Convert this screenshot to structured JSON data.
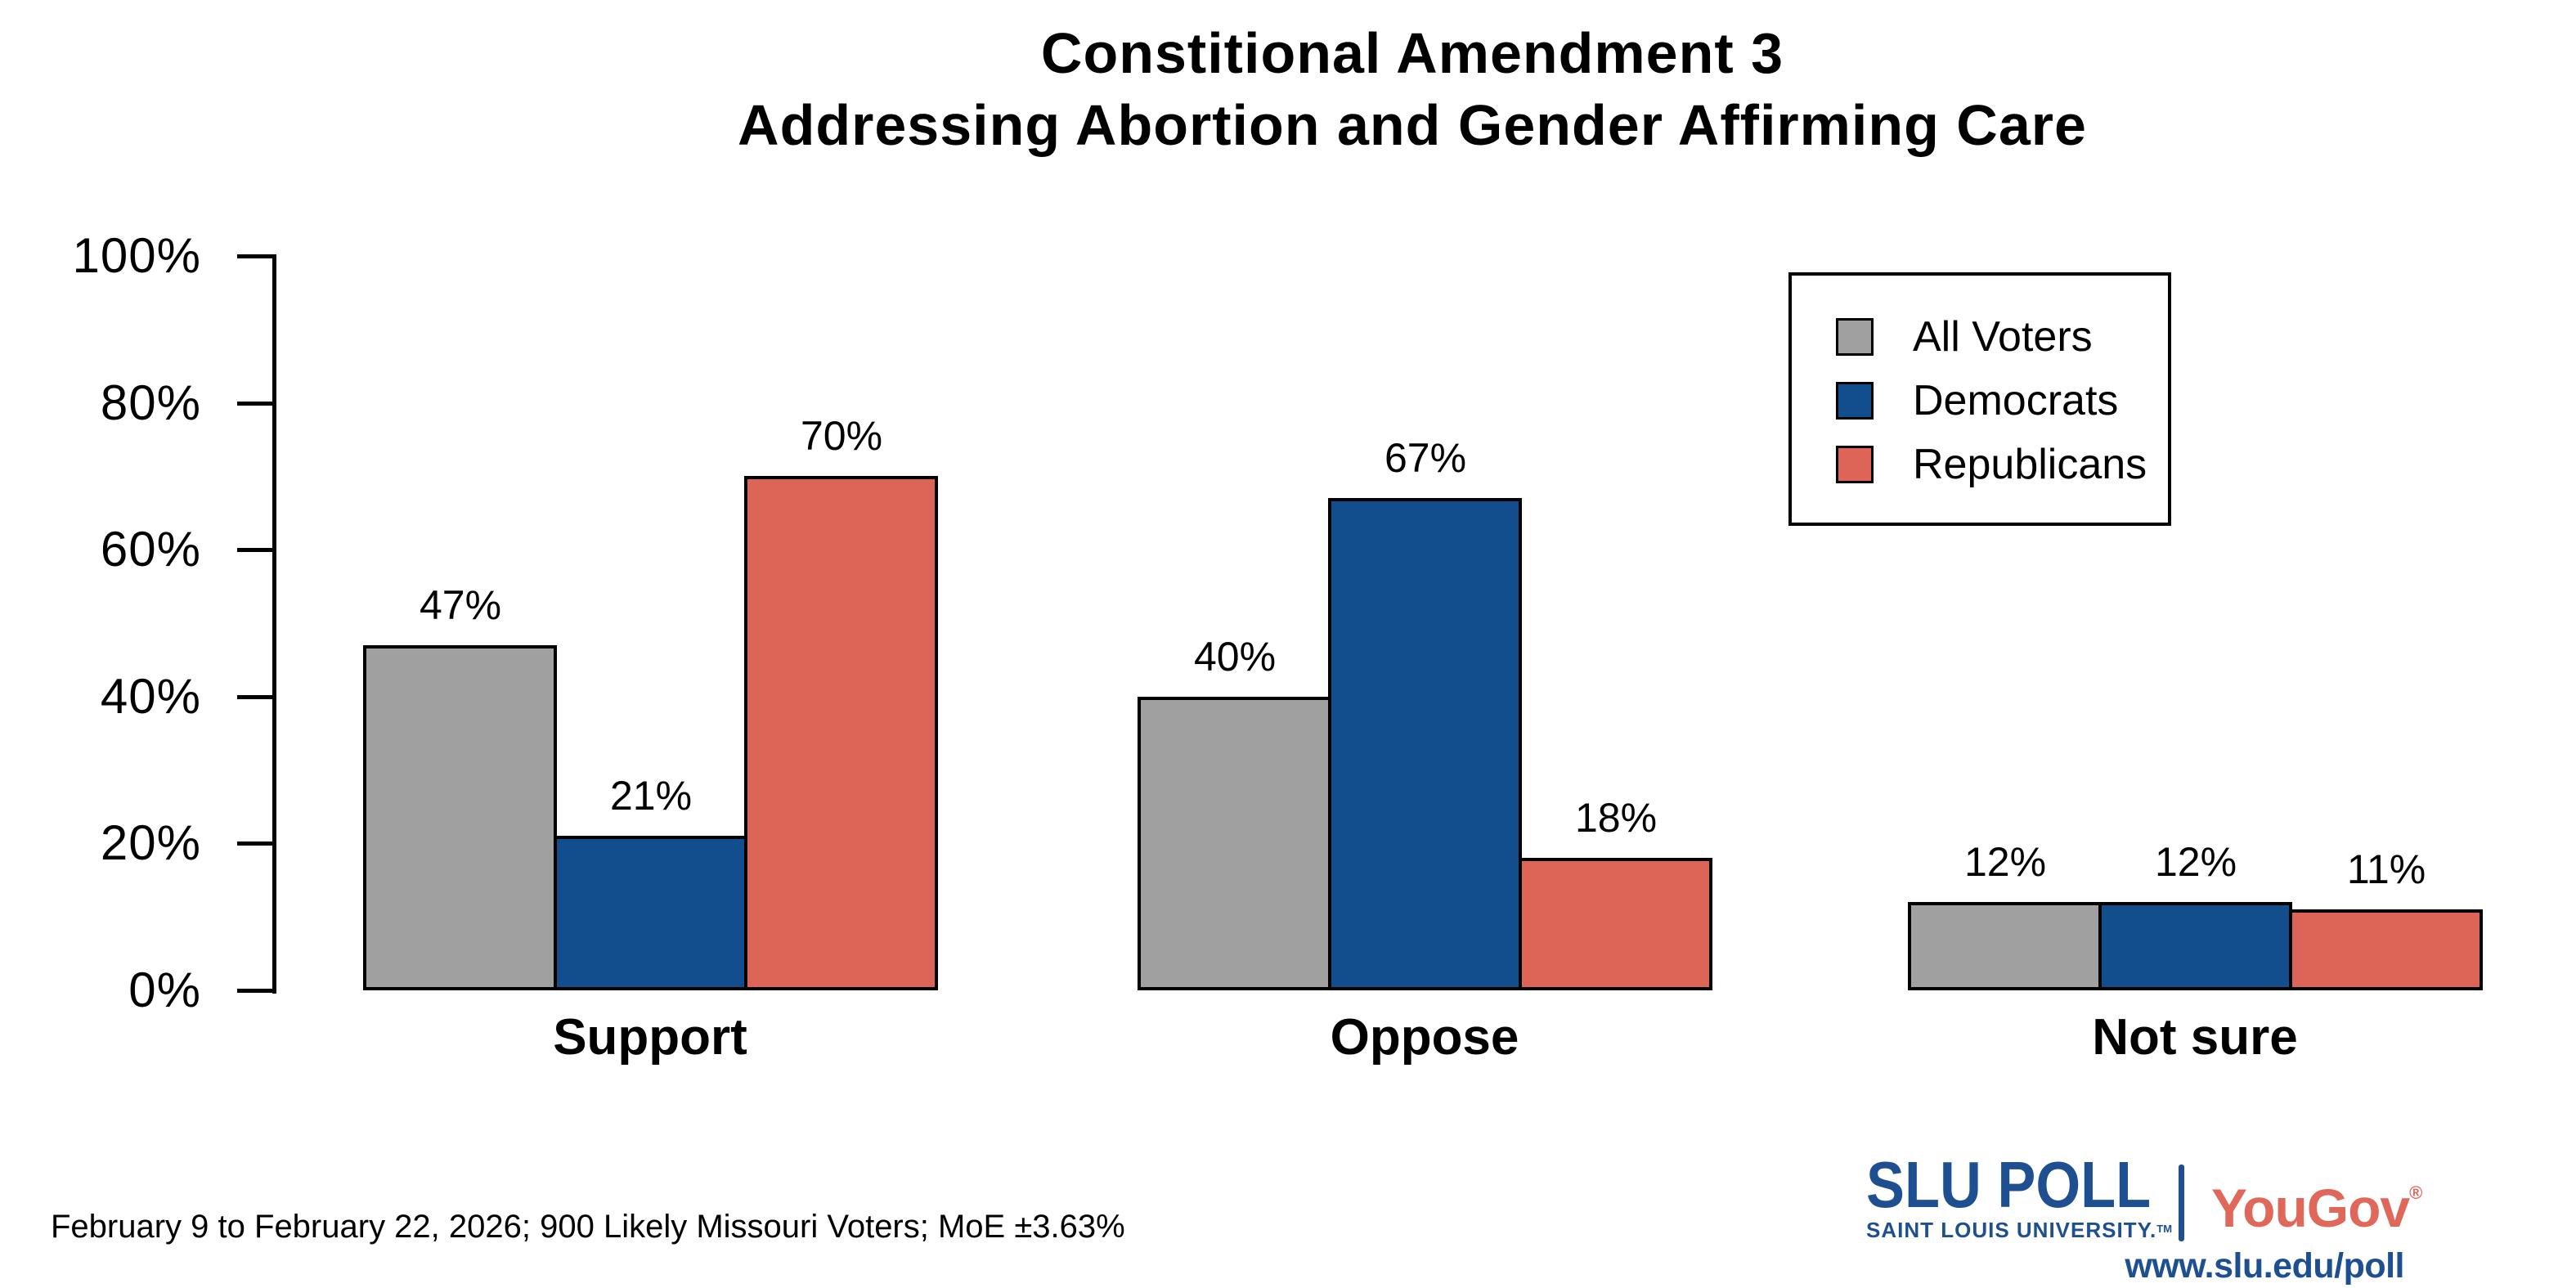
{
  "title": {
    "line1": "Constitional Amendment 3",
    "line2": "Addressing Abortion and Gender Affirming Care"
  },
  "chart_data": {
    "type": "bar",
    "categories": [
      "Support",
      "Oppose",
      "Not sure"
    ],
    "series": [
      {
        "name": "All Voters",
        "color": "#a0a0a0",
        "values": [
          47,
          40,
          12
        ]
      },
      {
        "name": "Democrats",
        "color": "#124e8e",
        "values": [
          21,
          67,
          12
        ]
      },
      {
        "name": "Republicans",
        "color": "#dd6557",
        "values": [
          70,
          18,
          11
        ]
      }
    ],
    "value_labels": [
      [
        "47%",
        "40%",
        "12%"
      ],
      [
        "21%",
        "67%",
        "12%"
      ],
      [
        "70%",
        "18%",
        "11%"
      ]
    ],
    "ylim": [
      0,
      100
    ],
    "yticks": [
      0,
      20,
      40,
      60,
      80,
      100
    ],
    "ytick_labels": [
      "0%",
      "20%",
      "40%",
      "60%",
      "80%",
      "100%"
    ],
    "xlabel": "",
    "ylabel": "",
    "grid": false,
    "legend_position": "top-right",
    "bar_outline_color": "#000000"
  },
  "footer": {
    "note": "February 9 to February 22, 2026; 900 Likely Missouri Voters; MoE ±3.63%"
  },
  "branding": {
    "slu_poll": "SLU POLL",
    "slu_sub": "SAINT LOUIS UNIVERSITY.",
    "slu_sub_tm": "TM",
    "yougov": "YouGov",
    "yougov_reg": "®",
    "url": "www.slu.edu/poll",
    "slu_blue": "#1d4f91",
    "yougov_red": "#e0685a"
  }
}
